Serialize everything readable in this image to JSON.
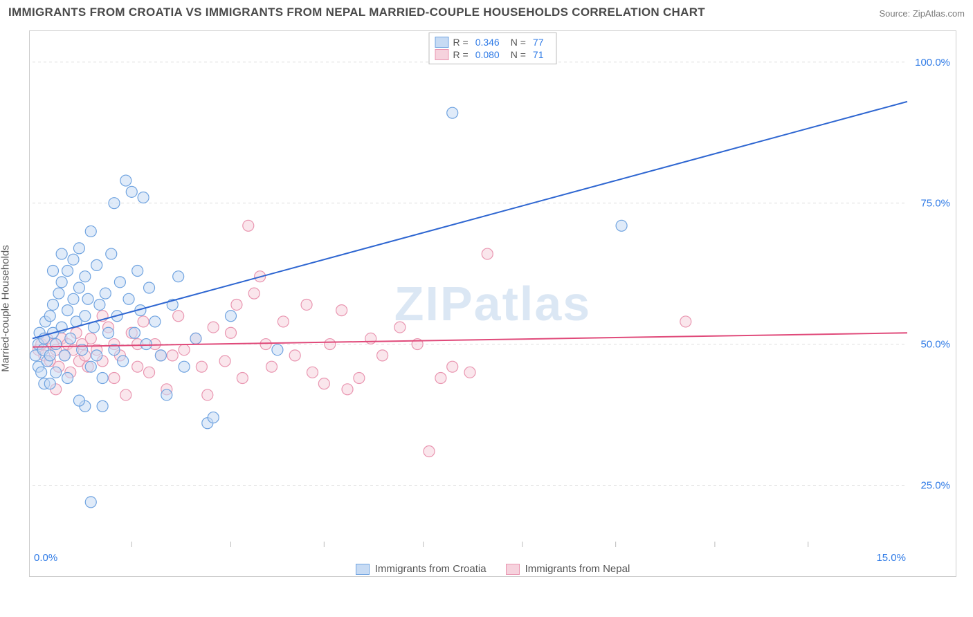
{
  "title_text": "IMMIGRANTS FROM CROATIA VS IMMIGRANTS FROM NEPAL MARRIED-COUPLE HOUSEHOLDS CORRELATION CHART",
  "source_text": "Source: ZipAtlas.com",
  "ylabel_text": "Married-couple Households",
  "watermark_text": "ZIPatlas",
  "chart": {
    "type": "scatter",
    "x_range": [
      0,
      15
    ],
    "y_range": [
      15,
      105
    ],
    "x_ticks": [
      0.0,
      15.0
    ],
    "x_minor_ticks": [
      1.7,
      3.4,
      5.0,
      6.7,
      8.4,
      10.0,
      11.7,
      13.3
    ],
    "y_ticks": [
      25.0,
      50.0,
      75.0,
      100.0
    ],
    "x_tick_labels": [
      "0.0%",
      "15.0%"
    ],
    "y_tick_labels": [
      "25.0%",
      "50.0%",
      "75.0%",
      "100.0%"
    ],
    "grid_color": "#dddddd",
    "grid_dash": "4,4",
    "border_color": "#cccccc",
    "background_color": "#ffffff",
    "watermark_color": "#9bbbe0",
    "watermark_opacity": 0.35,
    "point_radius": 8,
    "point_stroke_width": 1.2,
    "line_stroke_width": 2
  },
  "series": [
    {
      "name": "Immigrants from Croatia",
      "fill": "#c7dbf4",
      "stroke": "#6fa3e0",
      "fill_opacity": 0.55,
      "line_color": "#2e66d1",
      "regression": {
        "x1": 0,
        "y1": 51,
        "x2": 15,
        "y2": 93
      },
      "R": "0.346",
      "N": "77",
      "points": [
        [
          0.05,
          48
        ],
        [
          0.1,
          50
        ],
        [
          0.1,
          46
        ],
        [
          0.12,
          52
        ],
        [
          0.15,
          45
        ],
        [
          0.18,
          49
        ],
        [
          0.2,
          51
        ],
        [
          0.2,
          43
        ],
        [
          0.22,
          54
        ],
        [
          0.25,
          47
        ],
        [
          0.3,
          55
        ],
        [
          0.3,
          48
        ],
        [
          0.35,
          52
        ],
        [
          0.35,
          57
        ],
        [
          0.4,
          50
        ],
        [
          0.4,
          45
        ],
        [
          0.45,
          59
        ],
        [
          0.5,
          53
        ],
        [
          0.5,
          61
        ],
        [
          0.55,
          48
        ],
        [
          0.6,
          63
        ],
        [
          0.6,
          56
        ],
        [
          0.65,
          51
        ],
        [
          0.7,
          65
        ],
        [
          0.7,
          58
        ],
        [
          0.75,
          54
        ],
        [
          0.8,
          60
        ],
        [
          0.8,
          67
        ],
        [
          0.85,
          49
        ],
        [
          0.9,
          55
        ],
        [
          0.9,
          62
        ],
        [
          0.95,
          58
        ],
        [
          1.0,
          70
        ],
        [
          1.0,
          46
        ],
        [
          1.05,
          53
        ],
        [
          1.1,
          64
        ],
        [
          1.1,
          48
        ],
        [
          1.15,
          57
        ],
        [
          1.2,
          44
        ],
        [
          1.25,
          59
        ],
        [
          1.3,
          52
        ],
        [
          1.35,
          66
        ],
        [
          1.4,
          49
        ],
        [
          1.4,
          75
        ],
        [
          1.45,
          55
        ],
        [
          1.5,
          61
        ],
        [
          1.55,
          47
        ],
        [
          1.6,
          79
        ],
        [
          1.65,
          58
        ],
        [
          1.7,
          77
        ],
        [
          1.75,
          52
        ],
        [
          1.8,
          63
        ],
        [
          1.85,
          56
        ],
        [
          1.9,
          76
        ],
        [
          1.95,
          50
        ],
        [
          2.0,
          60
        ],
        [
          2.1,
          54
        ],
        [
          2.2,
          48
        ],
        [
          2.3,
          41
        ],
        [
          2.4,
          57
        ],
        [
          2.5,
          62
        ],
        [
          2.6,
          46
        ],
        [
          2.8,
          51
        ],
        [
          3.0,
          36
        ],
        [
          3.1,
          37
        ],
        [
          3.4,
          55
        ],
        [
          4.2,
          49
        ],
        [
          7.2,
          91
        ],
        [
          10.1,
          71
        ],
        [
          1.0,
          22
        ],
        [
          0.9,
          39
        ],
        [
          0.8,
          40
        ],
        [
          1.2,
          39
        ],
        [
          0.35,
          63
        ],
        [
          0.5,
          66
        ],
        [
          0.6,
          44
        ],
        [
          0.3,
          43
        ]
      ]
    },
    {
      "name": "Immigrants from Nepal",
      "fill": "#f6d2dd",
      "stroke": "#e995b0",
      "fill_opacity": 0.55,
      "line_color": "#e04a7a",
      "regression": {
        "x1": 0,
        "y1": 49.5,
        "x2": 15,
        "y2": 52
      },
      "R": "0.080",
      "N": "71",
      "points": [
        [
          0.1,
          49
        ],
        [
          0.15,
          50
        ],
        [
          0.2,
          48
        ],
        [
          0.25,
          51
        ],
        [
          0.3,
          47
        ],
        [
          0.35,
          50
        ],
        [
          0.4,
          49
        ],
        [
          0.45,
          46
        ],
        [
          0.5,
          51
        ],
        [
          0.55,
          48
        ],
        [
          0.6,
          50
        ],
        [
          0.65,
          45
        ],
        [
          0.7,
          49
        ],
        [
          0.75,
          52
        ],
        [
          0.8,
          47
        ],
        [
          0.85,
          50
        ],
        [
          0.9,
          48
        ],
        [
          0.95,
          46
        ],
        [
          1.0,
          51
        ],
        [
          1.1,
          49
        ],
        [
          1.2,
          47
        ],
        [
          1.3,
          53
        ],
        [
          1.4,
          50
        ],
        [
          1.5,
          48
        ],
        [
          1.6,
          41
        ],
        [
          1.7,
          52
        ],
        [
          1.8,
          46
        ],
        [
          1.9,
          54
        ],
        [
          2.0,
          45
        ],
        [
          2.1,
          50
        ],
        [
          2.2,
          48
        ],
        [
          2.3,
          42
        ],
        [
          2.5,
          55
        ],
        [
          2.6,
          49
        ],
        [
          2.8,
          51
        ],
        [
          3.0,
          41
        ],
        [
          3.1,
          53
        ],
        [
          3.3,
          47
        ],
        [
          3.5,
          57
        ],
        [
          3.6,
          44
        ],
        [
          3.7,
          71
        ],
        [
          3.8,
          59
        ],
        [
          3.9,
          62
        ],
        [
          4.0,
          50
        ],
        [
          4.1,
          46
        ],
        [
          4.3,
          54
        ],
        [
          4.5,
          48
        ],
        [
          4.7,
          57
        ],
        [
          4.8,
          45
        ],
        [
          5.0,
          43
        ],
        [
          5.1,
          50
        ],
        [
          5.3,
          56
        ],
        [
          5.4,
          42
        ],
        [
          5.6,
          44
        ],
        [
          5.8,
          51
        ],
        [
          6.0,
          48
        ],
        [
          6.3,
          53
        ],
        [
          6.6,
          50
        ],
        [
          6.8,
          31
        ],
        [
          7.0,
          44
        ],
        [
          7.2,
          46
        ],
        [
          7.5,
          45
        ],
        [
          7.8,
          66
        ],
        [
          11.2,
          54
        ],
        [
          1.2,
          55
        ],
        [
          1.4,
          44
        ],
        [
          1.8,
          50
        ],
        [
          2.4,
          48
        ],
        [
          2.9,
          46
        ],
        [
          3.4,
          52
        ],
        [
          0.4,
          42
        ]
      ]
    }
  ],
  "legend_top": {
    "r_label": "R  =",
    "n_label": "N  ="
  },
  "legend_bottom": {
    "items": [
      "Immigrants from Croatia",
      "Immigrants from Nepal"
    ]
  }
}
